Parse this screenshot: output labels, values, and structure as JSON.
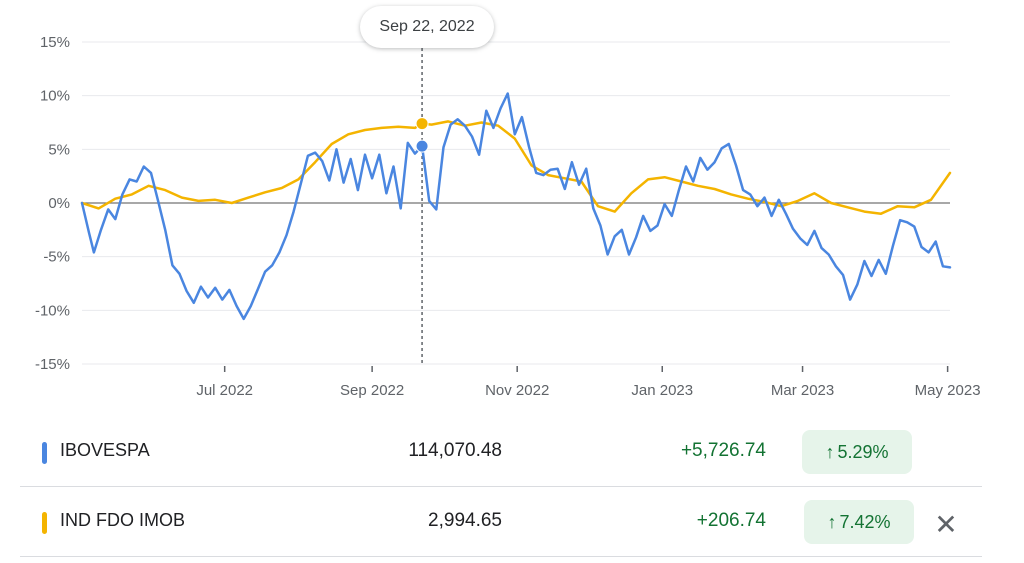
{
  "tooltip": {
    "date": "Sep 22, 2022"
  },
  "chart_data": {
    "type": "line",
    "x_range": [
      "2022-05-02",
      "2023-05-02"
    ],
    "ylim": [
      -15,
      15
    ],
    "y_ticks": [
      15,
      10,
      5,
      0,
      -5,
      -10,
      -15
    ],
    "y_tick_labels": [
      "15%",
      "10%",
      "5%",
      "0%",
      "-5%",
      "-10%",
      "-15%"
    ],
    "x_ticks": [
      "2022-07-01",
      "2022-09-01",
      "2022-11-01",
      "2023-01-01",
      "2023-03-01",
      "2023-05-01"
    ],
    "x_tick_labels": [
      "Jul 2022",
      "Sep 2022",
      "Nov 2022",
      "Jan 2023",
      "Mar 2023",
      "May 2023"
    ],
    "hover_date": "2022-09-22",
    "grid": true,
    "series": [
      {
        "name": "IBOVESPA",
        "color": "#4a86e0",
        "x": [
          "2022-05-02",
          "2022-05-05",
          "2022-05-07",
          "2022-05-10",
          "2022-05-13",
          "2022-05-16",
          "2022-05-19",
          "2022-05-22",
          "2022-05-25",
          "2022-05-28",
          "2022-05-31",
          "2022-06-03",
          "2022-06-06",
          "2022-06-09",
          "2022-06-12",
          "2022-06-15",
          "2022-06-18",
          "2022-06-21",
          "2022-06-24",
          "2022-06-27",
          "2022-06-30",
          "2022-07-03",
          "2022-07-06",
          "2022-07-09",
          "2022-07-12",
          "2022-07-15",
          "2022-07-18",
          "2022-07-21",
          "2022-07-24",
          "2022-07-27",
          "2022-07-30",
          "2022-08-02",
          "2022-08-05",
          "2022-08-08",
          "2022-08-11",
          "2022-08-14",
          "2022-08-17",
          "2022-08-20",
          "2022-08-23",
          "2022-08-26",
          "2022-08-29",
          "2022-09-01",
          "2022-09-04",
          "2022-09-07",
          "2022-09-10",
          "2022-09-13",
          "2022-09-16",
          "2022-09-19",
          "2022-09-22",
          "2022-09-25",
          "2022-09-28",
          "2022-10-01",
          "2022-10-04",
          "2022-10-07",
          "2022-10-10",
          "2022-10-13",
          "2022-10-16",
          "2022-10-19",
          "2022-10-22",
          "2022-10-25",
          "2022-10-28",
          "2022-10-31",
          "2022-11-03",
          "2022-11-06",
          "2022-11-09",
          "2022-11-12",
          "2022-11-15",
          "2022-11-18",
          "2022-11-21",
          "2022-11-24",
          "2022-11-27",
          "2022-11-30",
          "2022-12-03",
          "2022-12-06",
          "2022-12-09",
          "2022-12-12",
          "2022-12-15",
          "2022-12-18",
          "2022-12-21",
          "2022-12-24",
          "2022-12-27",
          "2022-12-30",
          "2023-01-02",
          "2023-01-05",
          "2023-01-08",
          "2023-01-11",
          "2023-01-14",
          "2023-01-17",
          "2023-01-20",
          "2023-01-23",
          "2023-01-26",
          "2023-01-29",
          "2023-02-01",
          "2023-02-04",
          "2023-02-07",
          "2023-02-10",
          "2023-02-13",
          "2023-02-16",
          "2023-02-19",
          "2023-02-22",
          "2023-02-25",
          "2023-02-28",
          "2023-03-03",
          "2023-03-06",
          "2023-03-09",
          "2023-03-12",
          "2023-03-15",
          "2023-03-18",
          "2023-03-21",
          "2023-03-24",
          "2023-03-27",
          "2023-03-30",
          "2023-04-02",
          "2023-04-05",
          "2023-04-08",
          "2023-04-11",
          "2023-04-14",
          "2023-04-17",
          "2023-04-20",
          "2023-04-23",
          "2023-04-26",
          "2023-04-29",
          "2023-05-02"
        ],
        "values": [
          0,
          -2.8,
          -4.6,
          -2.5,
          -0.6,
          -1.5,
          0.8,
          2.2,
          2.0,
          3.4,
          2.8,
          0.2,
          -2.5,
          -5.8,
          -6.6,
          -8.2,
          -9.3,
          -7.8,
          -8.8,
          -7.9,
          -9.0,
          -8.1,
          -9.6,
          -10.8,
          -9.6,
          -8.0,
          -6.4,
          -5.8,
          -4.6,
          -3.0,
          -0.8,
          1.8,
          4.4,
          4.7,
          3.9,
          2.1,
          5.0,
          1.9,
          4.1,
          1.2,
          4.5,
          2.3,
          4.5,
          0.9,
          3.4,
          -0.5,
          5.6,
          4.6,
          5.3,
          0.2,
          -0.6,
          5.2,
          7.3,
          7.8,
          7.2,
          6.2,
          4.5,
          8.6,
          7.0,
          8.8,
          10.2,
          6.4,
          8.0,
          5.2,
          2.8,
          2.6,
          3.1,
          3.2,
          1.3,
          3.8,
          1.7,
          3.2,
          -0.5,
          -2.1,
          -4.8,
          -3.1,
          -2.5,
          -4.8,
          -3.2,
          -1.2,
          -2.6,
          -2.1,
          -0.1,
          -1.2,
          1.2,
          3.4,
          2.0,
          4.2,
          3.1,
          3.8,
          5.1,
          5.5,
          3.5,
          1.2,
          0.8,
          -0.3,
          0.5,
          -1.2,
          0.3,
          -1.0,
          -2.4,
          -3.3,
          -3.9,
          -2.6,
          -4.2,
          -4.8,
          -5.9,
          -6.7,
          -9.0,
          -7.6,
          -5.4,
          -6.8,
          -5.3,
          -6.6,
          -4.0,
          -1.6,
          -1.8,
          -2.2,
          -4.1,
          -4.6,
          -3.6,
          -5.9,
          -6.0
        ]
      },
      {
        "name": "IND FDO IMOB",
        "color": "#f4b400",
        "x": [
          "2022-05-02",
          "2022-05-09",
          "2022-05-16",
          "2022-05-23",
          "2022-05-30",
          "2022-06-06",
          "2022-06-13",
          "2022-06-20",
          "2022-06-27",
          "2022-07-04",
          "2022-07-11",
          "2022-07-18",
          "2022-07-25",
          "2022-08-01",
          "2022-08-08",
          "2022-08-15",
          "2022-08-22",
          "2022-08-29",
          "2022-09-05",
          "2022-09-12",
          "2022-09-19",
          "2022-09-22",
          "2022-09-26",
          "2022-10-03",
          "2022-10-10",
          "2022-10-17",
          "2022-10-24",
          "2022-10-31",
          "2022-11-07",
          "2022-11-14",
          "2022-11-21",
          "2022-11-28",
          "2022-12-05",
          "2022-12-12",
          "2022-12-19",
          "2022-12-26",
          "2023-01-02",
          "2023-01-09",
          "2023-01-16",
          "2023-01-23",
          "2023-01-30",
          "2023-02-06",
          "2023-02-13",
          "2023-02-20",
          "2023-02-27",
          "2023-03-06",
          "2023-03-13",
          "2023-03-20",
          "2023-03-27",
          "2023-04-03",
          "2023-04-10",
          "2023-04-17",
          "2023-04-24",
          "2023-05-02"
        ],
        "values": [
          0,
          -0.5,
          0.4,
          0.8,
          1.6,
          1.2,
          0.5,
          0.2,
          0.3,
          0,
          0.5,
          1.0,
          1.4,
          2.2,
          3.8,
          5.5,
          6.4,
          6.8,
          7.0,
          7.1,
          7.0,
          7.4,
          7.3,
          7.6,
          7.2,
          7.5,
          7.2,
          6.0,
          3.5,
          2.6,
          2.3,
          2.0,
          -0.3,
          -0.8,
          0.9,
          2.2,
          2.4,
          2.0,
          1.6,
          1.3,
          0.8,
          0.4,
          0.1,
          -0.3,
          0.2,
          0.9,
          0.0,
          -0.4,
          -0.8,
          -1.0,
          -0.3,
          -0.4,
          0.3,
          2.8
        ]
      }
    ],
    "hover_values": {
      "IBOVESPA": 5.3,
      "IND FDO IMOB": 7.4
    }
  },
  "legend": {
    "rows": [
      {
        "name": "IBOVESPA",
        "color": "#4a86e0",
        "value": "114,070.48",
        "change": "+5,726.74",
        "pct": "5.29%"
      },
      {
        "name": "IND FDO IMOB",
        "color": "#f4b400",
        "value": "2,994.65",
        "change": "+206.74",
        "pct": "7.42%"
      }
    ]
  },
  "icons": {
    "pct_arrow": "arrow-up-icon",
    "remove": "close-icon"
  }
}
